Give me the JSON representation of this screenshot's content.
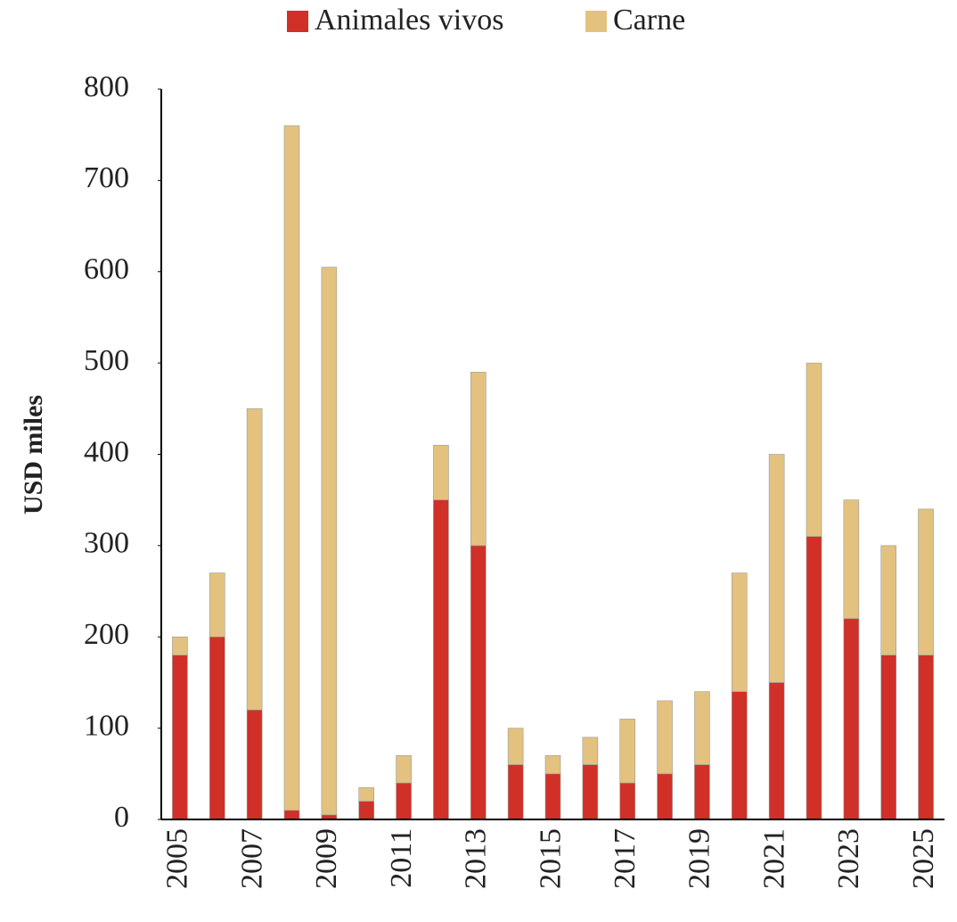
{
  "chart_data": {
    "type": "stacked_bar",
    "y_label": "USD miles",
    "categories": [
      "2005",
      null,
      "2007",
      null,
      "2009",
      null,
      "2011",
      null,
      "2013",
      null,
      "2015",
      null,
      "2017",
      null,
      "2019",
      null,
      "2021",
      null,
      "2023",
      null,
      "2025"
    ],
    "series": [
      {
        "name": "Animales vivos",
        "color": "#d03027",
        "values": [
          180,
          200,
          120,
          10,
          5,
          20,
          40,
          350,
          300,
          60,
          50,
          60,
          40,
          50,
          60,
          140,
          150,
          310,
          220,
          180,
          180
        ]
      },
      {
        "name": "Carne",
        "color": "#e3c27f",
        "values": [
          20,
          70,
          330,
          750,
          600,
          15,
          30,
          60,
          190,
          40,
          20,
          30,
          70,
          80,
          80,
          130,
          250,
          190,
          130,
          120,
          160
        ]
      }
    ],
    "ylim": [
      0,
      800
    ],
    "yticks": [
      0,
      100,
      200,
      300,
      400,
      500,
      600,
      700,
      800
    ],
    "legend": "top"
  }
}
